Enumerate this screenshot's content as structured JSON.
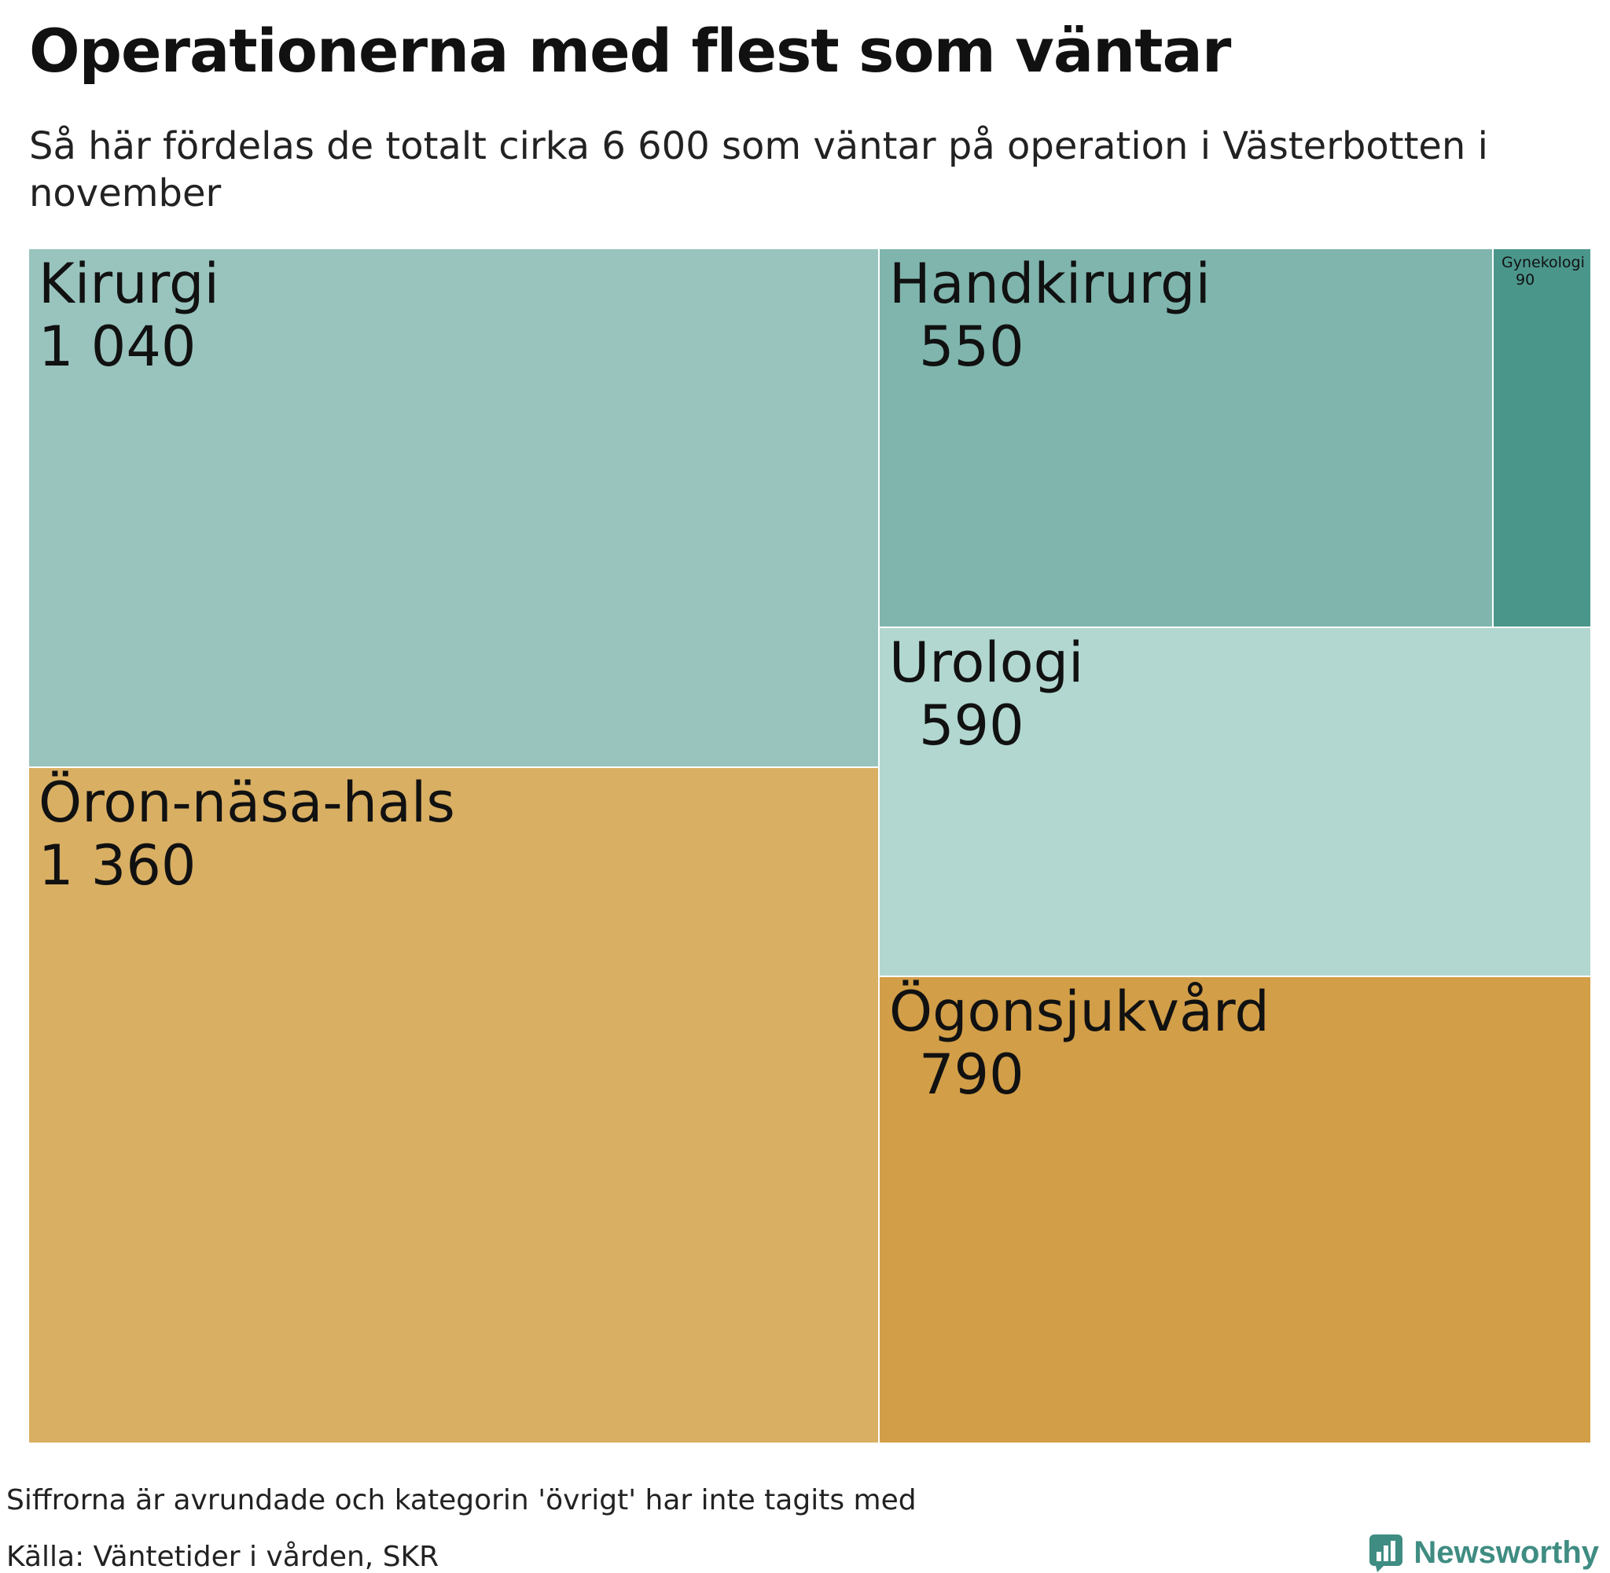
{
  "header": {
    "title": "Operationerna med flest som väntar",
    "subtitle": "Så här fördelas de totalt cirka 6 600 som väntar på operation i Västerbotten i november"
  },
  "chart_data": {
    "type": "treemap",
    "items": [
      {
        "name": "Kirurgi",
        "value": 1040,
        "value_label": "1 040",
        "color": "#99c4be"
      },
      {
        "name": "Öron-näsa-hals",
        "value": 1360,
        "value_label": "1 360",
        "color": "#d9af63"
      },
      {
        "name": "Handkirurgi",
        "value": 550,
        "value_label": "550",
        "color": "#7fb5ad"
      },
      {
        "name": "Gynekologi",
        "value": 90,
        "value_label": "90",
        "color": "#4b968b"
      },
      {
        "name": "Urologi",
        "value": 590,
        "value_label": "590",
        "color": "#b2d7d0"
      },
      {
        "name": "Ögonsjukvård",
        "value": 790,
        "value_label": "790",
        "color": "#d29e48"
      }
    ]
  },
  "footer": {
    "note": "Siffrorna är avrundade och kategorin 'övrigt' har inte tagits med",
    "source": "Källa: Väntetider i vården, SKR",
    "logo_text": "Newsworthy",
    "logo_color": "#3f8c82"
  }
}
